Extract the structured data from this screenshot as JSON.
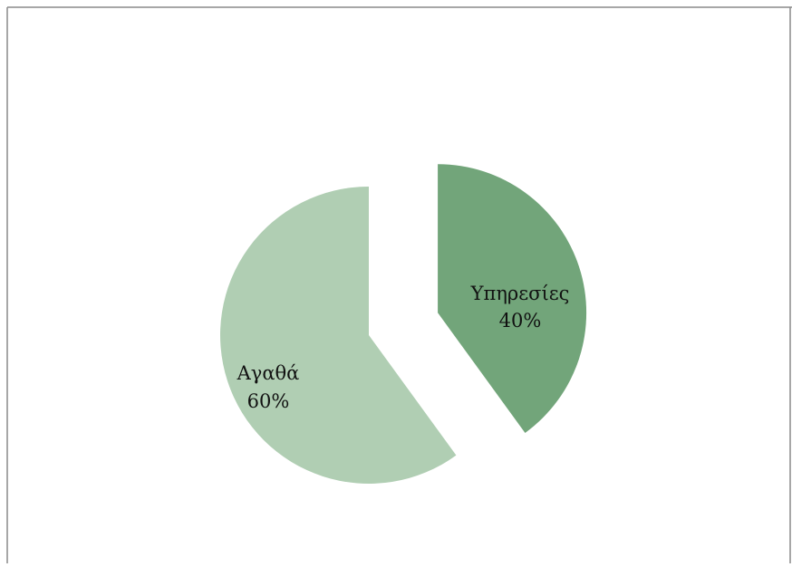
{
  "chart_data": {
    "type": "pie",
    "title": "",
    "categories": [
      "Υπηρεσίες",
      "Αγαθά"
    ],
    "values": [
      40,
      60
    ],
    "value_labels": [
      "40%",
      "60%"
    ],
    "colors": [
      "#72a57a",
      "#b0ceb3"
    ],
    "exploded": true,
    "legend": "none",
    "start": "top",
    "direction": "clockwise"
  }
}
